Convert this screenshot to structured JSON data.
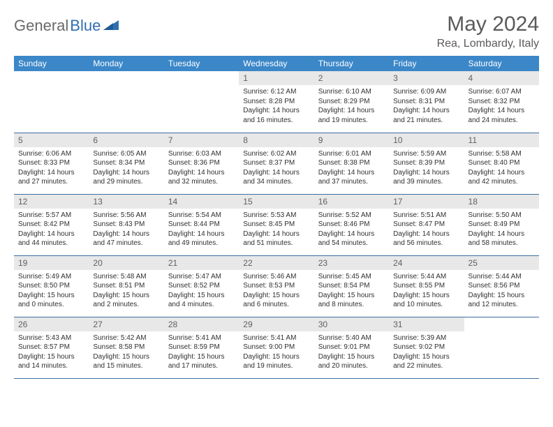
{
  "brand": {
    "part1": "General",
    "part2": "Blue"
  },
  "title": "May 2024",
  "location": "Rea, Lombardy, Italy",
  "colors": {
    "header_bg": "#3b87c8",
    "header_text": "#ffffff",
    "daynum_bg": "#e8e8e8",
    "text": "#303030",
    "title_color": "#5a5a5a",
    "row_border": "#3b6fa0"
  },
  "day_headers": [
    "Sunday",
    "Monday",
    "Tuesday",
    "Wednesday",
    "Thursday",
    "Friday",
    "Saturday"
  ],
  "weeks": [
    [
      {
        "empty": true
      },
      {
        "empty": true
      },
      {
        "empty": true
      },
      {
        "n": "1",
        "sr": "Sunrise: 6:12 AM",
        "ss": "Sunset: 8:28 PM",
        "dl": "Daylight: 14 hours and 16 minutes."
      },
      {
        "n": "2",
        "sr": "Sunrise: 6:10 AM",
        "ss": "Sunset: 8:29 PM",
        "dl": "Daylight: 14 hours and 19 minutes."
      },
      {
        "n": "3",
        "sr": "Sunrise: 6:09 AM",
        "ss": "Sunset: 8:31 PM",
        "dl": "Daylight: 14 hours and 21 minutes."
      },
      {
        "n": "4",
        "sr": "Sunrise: 6:07 AM",
        "ss": "Sunset: 8:32 PM",
        "dl": "Daylight: 14 hours and 24 minutes."
      }
    ],
    [
      {
        "n": "5",
        "sr": "Sunrise: 6:06 AM",
        "ss": "Sunset: 8:33 PM",
        "dl": "Daylight: 14 hours and 27 minutes."
      },
      {
        "n": "6",
        "sr": "Sunrise: 6:05 AM",
        "ss": "Sunset: 8:34 PM",
        "dl": "Daylight: 14 hours and 29 minutes."
      },
      {
        "n": "7",
        "sr": "Sunrise: 6:03 AM",
        "ss": "Sunset: 8:36 PM",
        "dl": "Daylight: 14 hours and 32 minutes."
      },
      {
        "n": "8",
        "sr": "Sunrise: 6:02 AM",
        "ss": "Sunset: 8:37 PM",
        "dl": "Daylight: 14 hours and 34 minutes."
      },
      {
        "n": "9",
        "sr": "Sunrise: 6:01 AM",
        "ss": "Sunset: 8:38 PM",
        "dl": "Daylight: 14 hours and 37 minutes."
      },
      {
        "n": "10",
        "sr": "Sunrise: 5:59 AM",
        "ss": "Sunset: 8:39 PM",
        "dl": "Daylight: 14 hours and 39 minutes."
      },
      {
        "n": "11",
        "sr": "Sunrise: 5:58 AM",
        "ss": "Sunset: 8:40 PM",
        "dl": "Daylight: 14 hours and 42 minutes."
      }
    ],
    [
      {
        "n": "12",
        "sr": "Sunrise: 5:57 AM",
        "ss": "Sunset: 8:42 PM",
        "dl": "Daylight: 14 hours and 44 minutes."
      },
      {
        "n": "13",
        "sr": "Sunrise: 5:56 AM",
        "ss": "Sunset: 8:43 PM",
        "dl": "Daylight: 14 hours and 47 minutes."
      },
      {
        "n": "14",
        "sr": "Sunrise: 5:54 AM",
        "ss": "Sunset: 8:44 PM",
        "dl": "Daylight: 14 hours and 49 minutes."
      },
      {
        "n": "15",
        "sr": "Sunrise: 5:53 AM",
        "ss": "Sunset: 8:45 PM",
        "dl": "Daylight: 14 hours and 51 minutes."
      },
      {
        "n": "16",
        "sr": "Sunrise: 5:52 AM",
        "ss": "Sunset: 8:46 PM",
        "dl": "Daylight: 14 hours and 54 minutes."
      },
      {
        "n": "17",
        "sr": "Sunrise: 5:51 AM",
        "ss": "Sunset: 8:47 PM",
        "dl": "Daylight: 14 hours and 56 minutes."
      },
      {
        "n": "18",
        "sr": "Sunrise: 5:50 AM",
        "ss": "Sunset: 8:49 PM",
        "dl": "Daylight: 14 hours and 58 minutes."
      }
    ],
    [
      {
        "n": "19",
        "sr": "Sunrise: 5:49 AM",
        "ss": "Sunset: 8:50 PM",
        "dl": "Daylight: 15 hours and 0 minutes."
      },
      {
        "n": "20",
        "sr": "Sunrise: 5:48 AM",
        "ss": "Sunset: 8:51 PM",
        "dl": "Daylight: 15 hours and 2 minutes."
      },
      {
        "n": "21",
        "sr": "Sunrise: 5:47 AM",
        "ss": "Sunset: 8:52 PM",
        "dl": "Daylight: 15 hours and 4 minutes."
      },
      {
        "n": "22",
        "sr": "Sunrise: 5:46 AM",
        "ss": "Sunset: 8:53 PM",
        "dl": "Daylight: 15 hours and 6 minutes."
      },
      {
        "n": "23",
        "sr": "Sunrise: 5:45 AM",
        "ss": "Sunset: 8:54 PM",
        "dl": "Daylight: 15 hours and 8 minutes."
      },
      {
        "n": "24",
        "sr": "Sunrise: 5:44 AM",
        "ss": "Sunset: 8:55 PM",
        "dl": "Daylight: 15 hours and 10 minutes."
      },
      {
        "n": "25",
        "sr": "Sunrise: 5:44 AM",
        "ss": "Sunset: 8:56 PM",
        "dl": "Daylight: 15 hours and 12 minutes."
      }
    ],
    [
      {
        "n": "26",
        "sr": "Sunrise: 5:43 AM",
        "ss": "Sunset: 8:57 PM",
        "dl": "Daylight: 15 hours and 14 minutes."
      },
      {
        "n": "27",
        "sr": "Sunrise: 5:42 AM",
        "ss": "Sunset: 8:58 PM",
        "dl": "Daylight: 15 hours and 15 minutes."
      },
      {
        "n": "28",
        "sr": "Sunrise: 5:41 AM",
        "ss": "Sunset: 8:59 PM",
        "dl": "Daylight: 15 hours and 17 minutes."
      },
      {
        "n": "29",
        "sr": "Sunrise: 5:41 AM",
        "ss": "Sunset: 9:00 PM",
        "dl": "Daylight: 15 hours and 19 minutes."
      },
      {
        "n": "30",
        "sr": "Sunrise: 5:40 AM",
        "ss": "Sunset: 9:01 PM",
        "dl": "Daylight: 15 hours and 20 minutes."
      },
      {
        "n": "31",
        "sr": "Sunrise: 5:39 AM",
        "ss": "Sunset: 9:02 PM",
        "dl": "Daylight: 15 hours and 22 minutes."
      },
      {
        "empty": true
      }
    ]
  ]
}
